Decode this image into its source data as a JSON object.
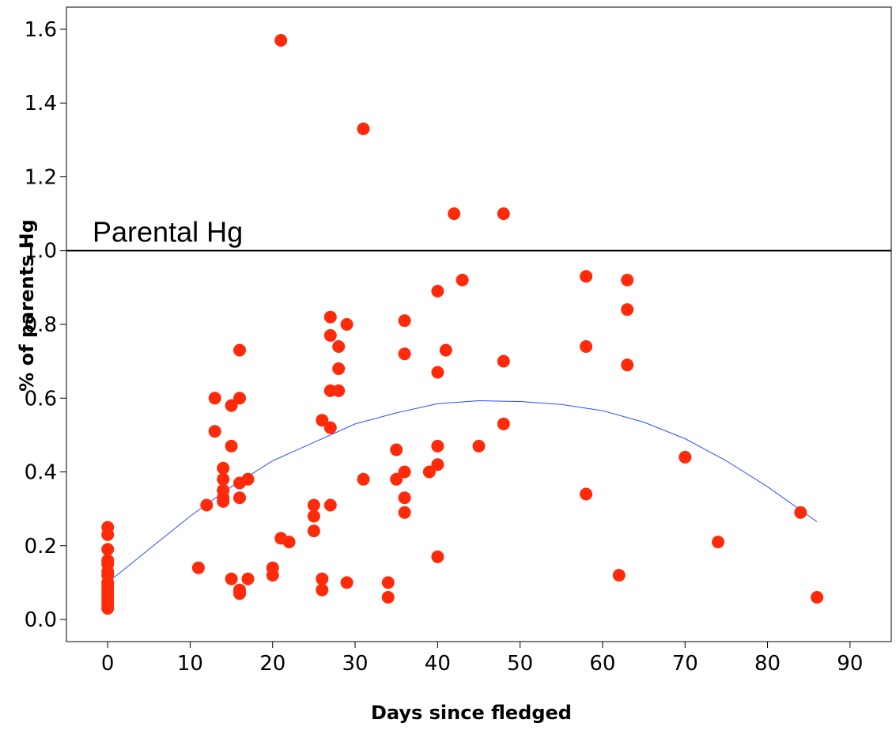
{
  "chart_data": {
    "type": "scatter",
    "xlabel": "Days since fledged",
    "ylabel": "% of parents Hg",
    "xlim": [
      -5,
      95
    ],
    "ylim": [
      -0.06,
      1.66
    ],
    "x_ticks": [
      0,
      10,
      20,
      30,
      40,
      50,
      60,
      70,
      80,
      90
    ],
    "x_tick_labels": [
      "0",
      "10",
      "20",
      "30",
      "40",
      "50",
      "60",
      "70",
      "80",
      "90"
    ],
    "y_ticks": [
      0.0,
      0.2,
      0.4,
      0.6,
      0.8,
      1.0,
      1.2,
      1.4,
      1.6
    ],
    "y_tick_labels": [
      "0.0",
      "0.2",
      "0.4",
      "0.6",
      "0.8",
      "1.0",
      "1.2",
      "1.4",
      "1.6"
    ],
    "grid": false,
    "reference_line": {
      "y": 1.0,
      "label": "Parental Hg",
      "color": "#000000"
    },
    "points_color": "#ff2a0a",
    "trend_color": "#2a4cff",
    "points": [
      [
        0,
        0.25
      ],
      [
        0,
        0.23
      ],
      [
        0,
        0.19
      ],
      [
        0,
        0.16
      ],
      [
        0,
        0.15
      ],
      [
        0,
        0.13
      ],
      [
        0,
        0.12
      ],
      [
        0,
        0.1
      ],
      [
        0,
        0.09
      ],
      [
        0,
        0.08
      ],
      [
        0,
        0.07
      ],
      [
        0,
        0.06
      ],
      [
        0,
        0.05
      ],
      [
        0,
        0.04
      ],
      [
        0,
        0.03
      ],
      [
        11,
        0.14
      ],
      [
        12,
        0.31
      ],
      [
        13,
        0.6
      ],
      [
        13,
        0.51
      ],
      [
        14,
        0.41
      ],
      [
        14,
        0.38
      ],
      [
        14,
        0.35
      ],
      [
        14,
        0.33
      ],
      [
        14,
        0.32
      ],
      [
        15,
        0.58
      ],
      [
        15,
        0.47
      ],
      [
        15,
        0.11
      ],
      [
        16,
        0.73
      ],
      [
        16,
        0.6
      ],
      [
        16,
        0.37
      ],
      [
        16,
        0.33
      ],
      [
        16,
        0.08
      ],
      [
        16,
        0.07
      ],
      [
        17,
        0.38
      ],
      [
        17,
        0.11
      ],
      [
        20,
        0.14
      ],
      [
        20,
        0.12
      ],
      [
        21,
        1.57
      ],
      [
        21,
        0.22
      ],
      [
        22,
        0.21
      ],
      [
        25,
        0.31
      ],
      [
        25,
        0.28
      ],
      [
        25,
        0.24
      ],
      [
        26,
        0.54
      ],
      [
        26,
        0.11
      ],
      [
        26,
        0.08
      ],
      [
        27,
        0.82
      ],
      [
        27,
        0.77
      ],
      [
        27,
        0.62
      ],
      [
        27,
        0.52
      ],
      [
        27,
        0.31
      ],
      [
        28,
        0.74
      ],
      [
        28,
        0.68
      ],
      [
        28,
        0.62
      ],
      [
        29,
        0.8
      ],
      [
        29,
        0.1
      ],
      [
        31,
        1.33
      ],
      [
        31,
        0.38
      ],
      [
        34,
        0.1
      ],
      [
        34,
        0.06
      ],
      [
        35,
        0.46
      ],
      [
        35,
        0.38
      ],
      [
        36,
        0.81
      ],
      [
        36,
        0.72
      ],
      [
        36,
        0.4
      ],
      [
        36,
        0.33
      ],
      [
        36,
        0.29
      ],
      [
        39,
        0.4
      ],
      [
        40,
        0.89
      ],
      [
        40,
        0.67
      ],
      [
        40,
        0.47
      ],
      [
        40,
        0.42
      ],
      [
        40,
        0.17
      ],
      [
        41,
        0.73
      ],
      [
        42,
        1.1
      ],
      [
        43,
        0.92
      ],
      [
        45,
        0.47
      ],
      [
        48,
        1.1
      ],
      [
        48,
        0.7
      ],
      [
        48,
        0.53
      ],
      [
        58,
        0.93
      ],
      [
        58,
        0.74
      ],
      [
        58,
        0.34
      ],
      [
        62,
        0.12
      ],
      [
        63,
        0.92
      ],
      [
        63,
        0.84
      ],
      [
        63,
        0.69
      ],
      [
        70,
        0.44
      ],
      [
        74,
        0.21
      ],
      [
        84,
        0.29
      ],
      [
        86,
        0.06
      ]
    ],
    "trend": [
      [
        0,
        0.1
      ],
      [
        5,
        0.19
      ],
      [
        10,
        0.28
      ],
      [
        15,
        0.36
      ],
      [
        20,
        0.43
      ],
      [
        25,
        0.48
      ],
      [
        30,
        0.53
      ],
      [
        35,
        0.56
      ],
      [
        40,
        0.585
      ],
      [
        45,
        0.593
      ],
      [
        50,
        0.591
      ],
      [
        55,
        0.583
      ],
      [
        60,
        0.566
      ],
      [
        65,
        0.535
      ],
      [
        70,
        0.49
      ],
      [
        75,
        0.43
      ],
      [
        80,
        0.36
      ],
      [
        86,
        0.265
      ]
    ]
  }
}
